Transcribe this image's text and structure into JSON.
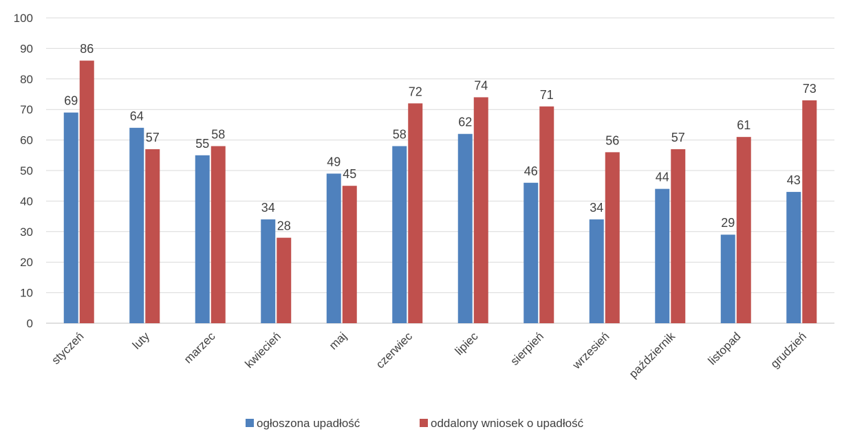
{
  "chart_data": {
    "type": "bar",
    "categories": [
      "styczeń",
      "luty",
      "marzec",
      "kwiecień",
      "maj",
      "czerwiec",
      "lipiec",
      "sierpień",
      "wrzesień",
      "październik",
      "listopad",
      "grudzień"
    ],
    "series": [
      {
        "name": "ogłoszona upadłość",
        "color": "#4f81bd",
        "values": [
          69,
          64,
          55,
          34,
          49,
          58,
          62,
          46,
          34,
          44,
          29,
          43
        ]
      },
      {
        "name": "oddalony wniosek o upadłość",
        "color": "#c0504d",
        "values": [
          86,
          57,
          58,
          28,
          45,
          72,
          74,
          71,
          56,
          57,
          61,
          73
        ]
      }
    ],
    "ylim": [
      0,
      100
    ],
    "yticks": [
      0,
      10,
      20,
      30,
      40,
      50,
      60,
      70,
      80,
      90,
      100
    ],
    "grid": true,
    "legend_position": "bottom",
    "title": "",
    "xlabel": "",
    "ylabel": ""
  }
}
